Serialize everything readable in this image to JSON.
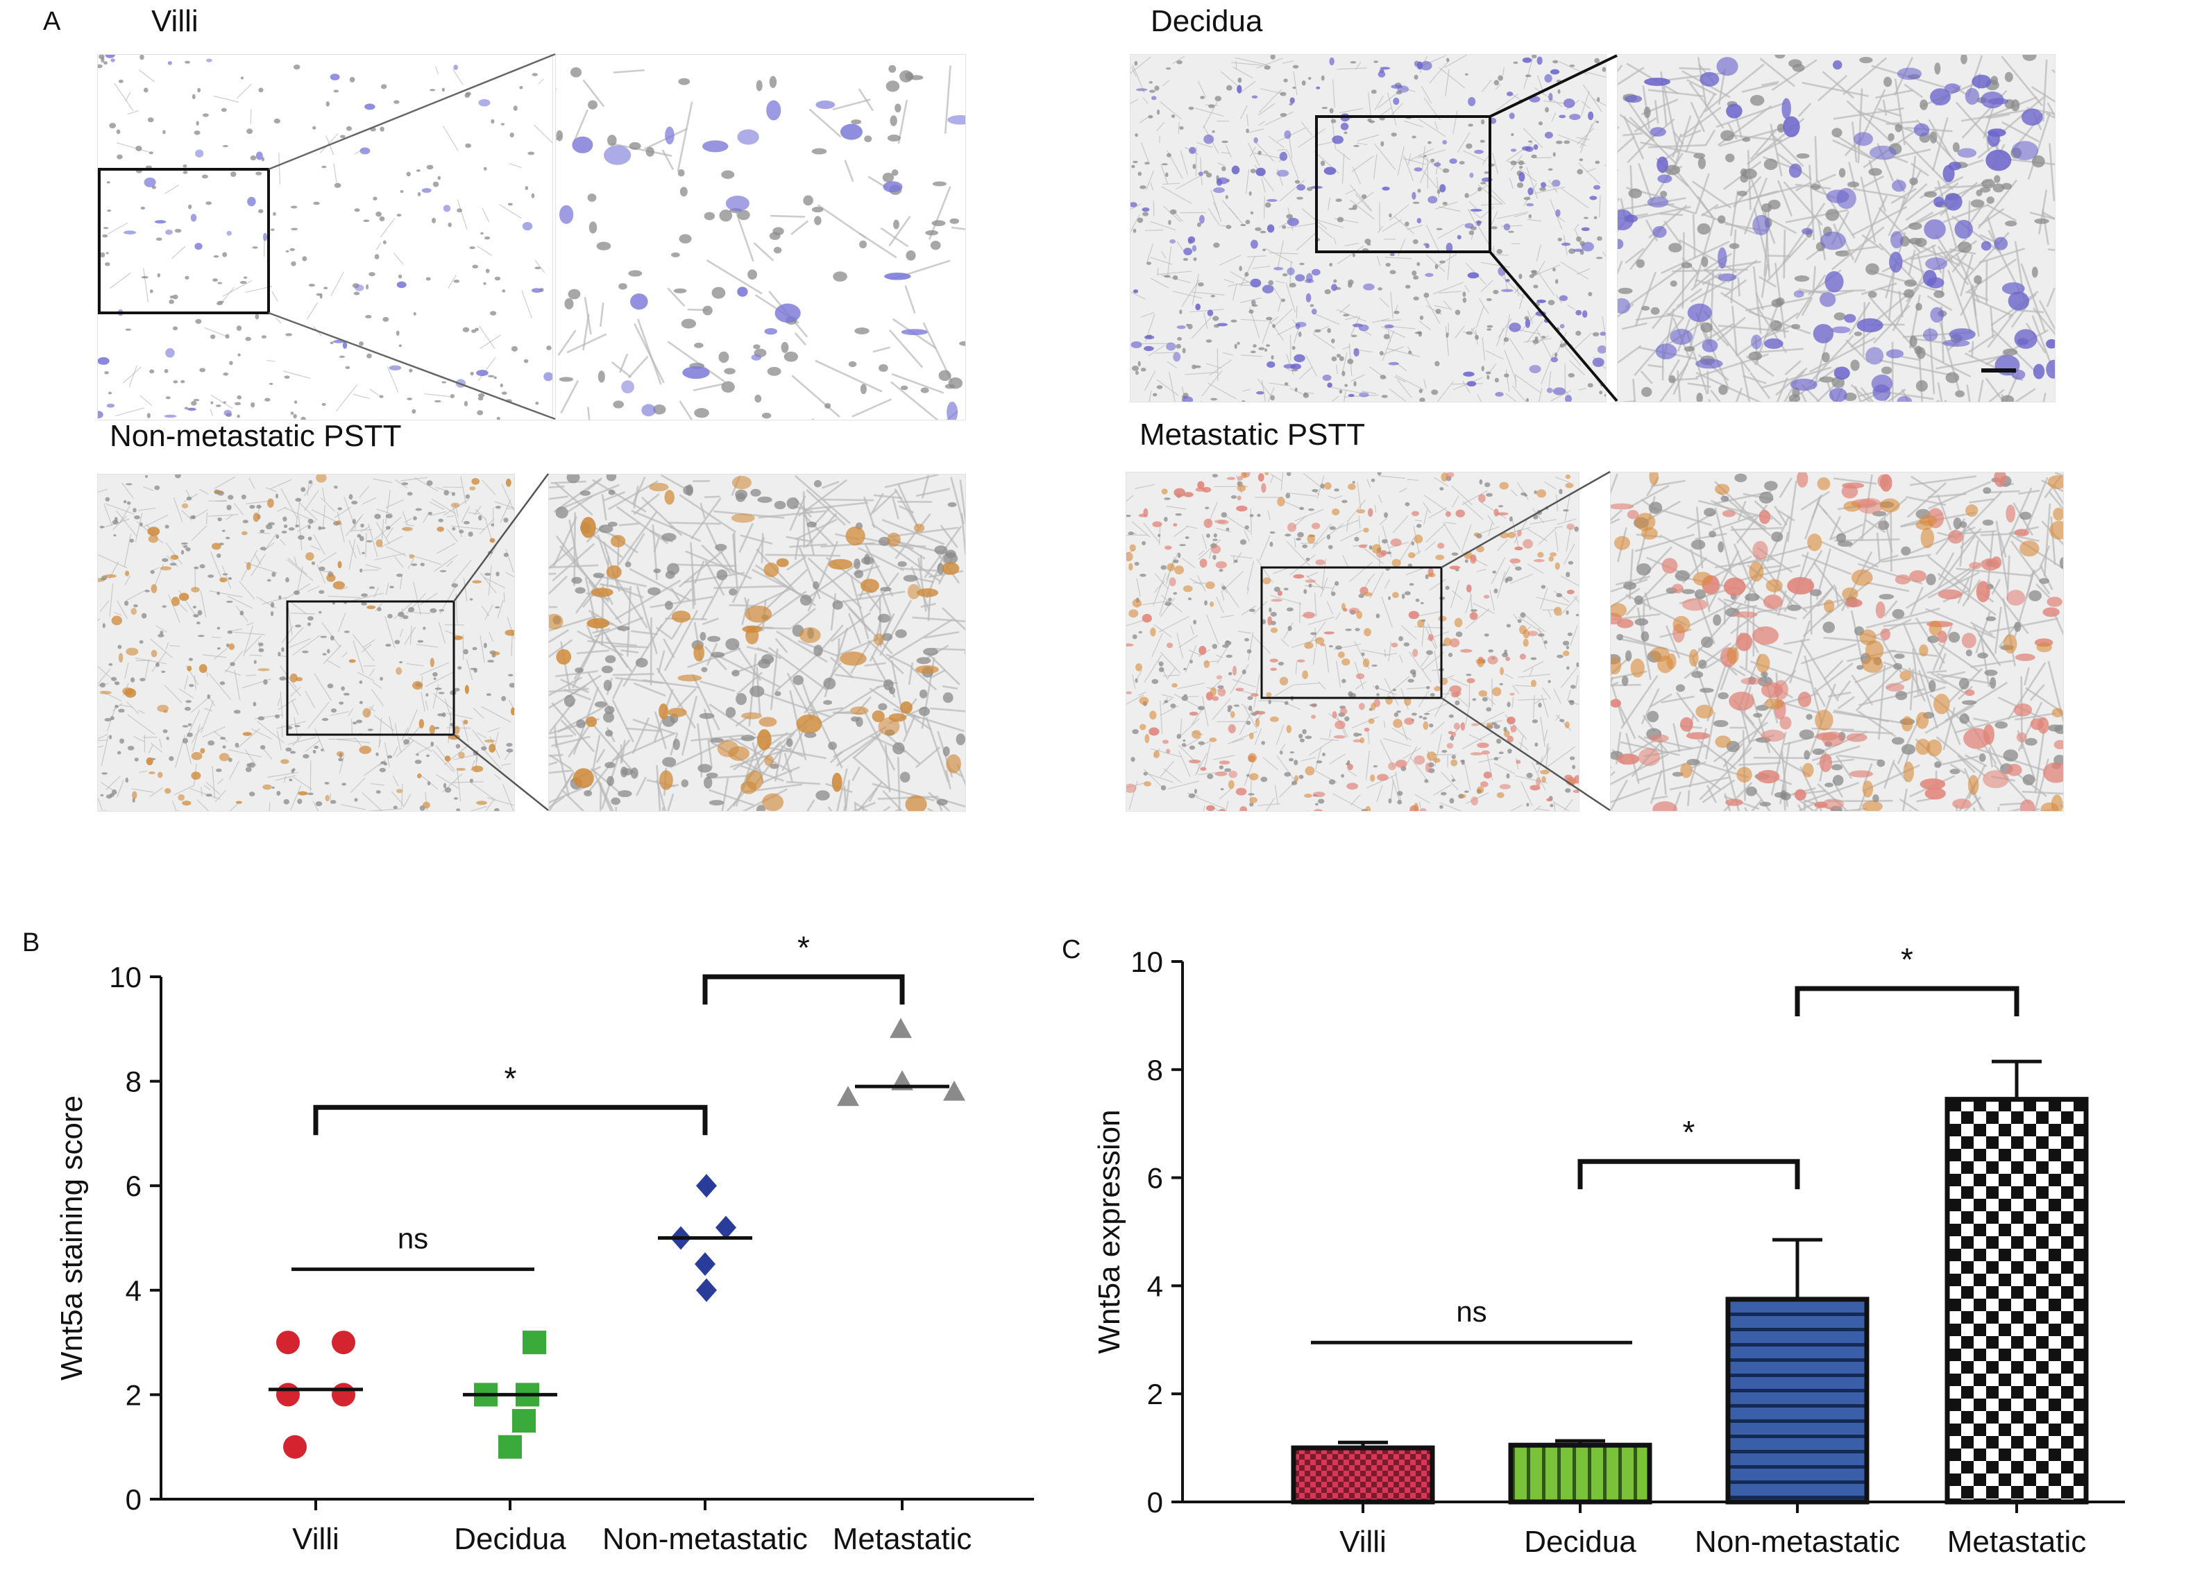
{
  "panel_a": {
    "letter": "A",
    "tiles": [
      {
        "key": "villi",
        "label": "Villi",
        "tint": "#7a78d8",
        "density": 0.25
      },
      {
        "key": "decidua",
        "label": "Decidua",
        "tint": "#6d66cc",
        "density": 1.0
      },
      {
        "key": "nonmet",
        "label": "Non-metastatic PSTT",
        "tint": "#cf8a3a",
        "density": 0.6
      },
      {
        "key": "met",
        "label": "Metastatic PSTT",
        "tint": "#e0857a",
        "density": 1.0
      }
    ]
  },
  "chart_data": [
    {
      "id": "B",
      "panel_letter": "B",
      "type": "scatter",
      "categories": [
        "Villi",
        "Decidua",
        "Non-metastatic",
        "Metastatic"
      ],
      "ylabel": "Wnt5a staining score",
      "ylim": [
        0,
        10
      ],
      "yticks": [
        0,
        2,
        4,
        6,
        8,
        10
      ],
      "series": [
        {
          "category": "Villi",
          "marker": "circle",
          "color": "#d4242f",
          "points": [
            3,
            3,
            2,
            2,
            1
          ],
          "median": 2.1
        },
        {
          "category": "Decidua",
          "marker": "square",
          "color": "#3aaa3a",
          "points": [
            3,
            2,
            2,
            1.5,
            1
          ],
          "median": 2.0
        },
        {
          "category": "Non-metastatic",
          "marker": "diamond",
          "color": "#2a3c9a",
          "points": [
            6,
            5.2,
            5,
            4.5,
            4
          ],
          "median": 5.0
        },
        {
          "category": "Metastatic",
          "marker": "triangle",
          "color": "#8a8a8a",
          "points": [
            9,
            8,
            7.7,
            7.8
          ],
          "median": 7.9
        }
      ],
      "annotations": [
        {
          "text": "ns",
          "type": "line",
          "from": 0,
          "to": 1,
          "y": 4.4
        },
        {
          "text": "*",
          "type": "bracket",
          "from": 0,
          "to": 2,
          "y": 7.5
        },
        {
          "text": "*",
          "type": "bracket",
          "from": 2,
          "to": 3,
          "y": 10.0
        }
      ]
    },
    {
      "id": "C",
      "panel_letter": "C",
      "type": "bar",
      "categories": [
        "Villi",
        "Decidua",
        "Non-metastatic",
        "Metastatic"
      ],
      "ylabel": "Wnt5a expression",
      "ylim": [
        0,
        10
      ],
      "yticks": [
        0,
        2,
        4,
        6,
        8,
        10
      ],
      "values": [
        1.0,
        1.05,
        3.75,
        7.45
      ],
      "errors": [
        0.1,
        0.08,
        1.1,
        0.7
      ],
      "fills": [
        {
          "pattern": "pink-check",
          "colors": [
            "#d8365a",
            "#7a1a2a"
          ]
        },
        {
          "pattern": "green-vertical",
          "colors": [
            "#7ac23a",
            "#2e5a14"
          ]
        },
        {
          "pattern": "blue-horizontal",
          "colors": [
            "#3a5fa8",
            "#132a55"
          ]
        },
        {
          "pattern": "bw-check",
          "colors": [
            "#ffffff",
            "#111111"
          ]
        }
      ],
      "annotations": [
        {
          "text": "ns",
          "type": "line",
          "from": 0,
          "to": 1,
          "y": 2.95
        },
        {
          "text": "*",
          "type": "bracket",
          "from": 1,
          "to": 2,
          "y": 6.3
        },
        {
          "text": "*",
          "type": "bracket",
          "from": 2,
          "to": 3,
          "y": 9.5
        }
      ]
    }
  ]
}
